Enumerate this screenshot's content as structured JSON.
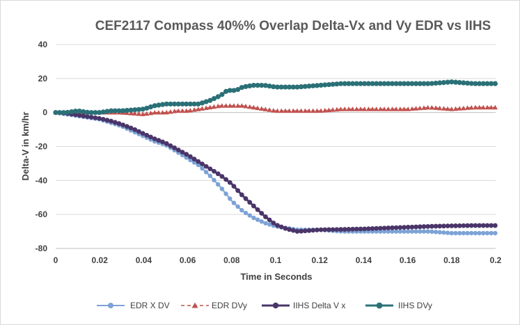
{
  "chart_data": {
    "type": "line",
    "title": "CEF2117 Compass 40%% Overlap  Delta-Vx and Vy EDR vs IIHS",
    "xlabel": "Time in Seconds",
    "ylabel": "Delta-V in km/hr",
    "xlim": [
      0,
      0.2
    ],
    "ylim": [
      -80,
      40
    ],
    "x_ticks": [
      0,
      0.02,
      0.04,
      0.06,
      0.08,
      0.1,
      0.12,
      0.14,
      0.16,
      0.18,
      0.2
    ],
    "x_tick_labels": [
      "0",
      "0.02",
      "0.04",
      "0.06",
      "0.08",
      "0.1",
      "0.12",
      "0.14",
      "0.16",
      "0.18",
      "0.2"
    ],
    "y_ticks": [
      -80,
      -60,
      -40,
      -20,
      0,
      20,
      40
    ],
    "y_tick_labels": [
      "-80",
      "-60",
      "-40",
      "-20",
      "0",
      "20",
      "40"
    ],
    "grid": "horizontal",
    "legend_position": "bottom",
    "series": [
      {
        "name": "EDR X DV",
        "color": "#7da2d6",
        "marker": "circle",
        "line": "solid",
        "x": [
          0,
          0.005,
          0.01,
          0.015,
          0.02,
          0.025,
          0.03,
          0.035,
          0.04,
          0.045,
          0.05,
          0.055,
          0.06,
          0.065,
          0.07,
          0.075,
          0.08,
          0.085,
          0.09,
          0.095,
          0.1,
          0.105,
          0.11,
          0.115,
          0.12,
          0.13,
          0.14,
          0.15,
          0.16,
          0.17,
          0.18,
          0.19,
          0.2
        ],
        "y": [
          0,
          -1,
          -2,
          -3,
          -4,
          -6,
          -8,
          -11,
          -14,
          -17,
          -19,
          -23,
          -27,
          -31,
          -37,
          -44,
          -52,
          -58,
          -62,
          -65,
          -67,
          -68,
          -69,
          -69,
          -69,
          -70,
          -70,
          -70,
          -70,
          -70,
          -71,
          -71,
          -71
        ]
      },
      {
        "name": "EDR DVy",
        "color": "#c0504d",
        "marker": "triangle",
        "line": "dashed",
        "x": [
          0,
          0.01,
          0.02,
          0.03,
          0.04,
          0.045,
          0.05,
          0.055,
          0.06,
          0.065,
          0.07,
          0.075,
          0.08,
          0.085,
          0.09,
          0.095,
          0.1,
          0.11,
          0.12,
          0.13,
          0.14,
          0.15,
          0.16,
          0.17,
          0.18,
          0.19,
          0.2
        ],
        "y": [
          0,
          0,
          0,
          0,
          -1,
          0,
          0,
          1,
          1,
          2,
          3,
          4,
          4,
          4,
          3,
          2,
          1,
          1,
          1,
          2,
          2,
          2,
          2,
          3,
          2,
          3,
          3
        ]
      },
      {
        "name": "IIHS Delta V x",
        "color": "#4a3569",
        "marker": "circle",
        "line": "solid",
        "x": [
          0,
          0.005,
          0.01,
          0.015,
          0.02,
          0.025,
          0.03,
          0.035,
          0.04,
          0.045,
          0.05,
          0.055,
          0.06,
          0.065,
          0.07,
          0.075,
          0.08,
          0.085,
          0.09,
          0.095,
          0.1,
          0.105,
          0.11,
          0.115,
          0.12,
          0.13,
          0.14,
          0.15,
          0.16,
          0.17,
          0.18,
          0.19,
          0.2
        ],
        "y": [
          0,
          -0.5,
          -1.5,
          -2.5,
          -3.5,
          -5,
          -7,
          -9.5,
          -12.5,
          -15.5,
          -18,
          -21.5,
          -25,
          -29,
          -33,
          -37,
          -42,
          -49,
          -55,
          -61,
          -66,
          -68.5,
          -70,
          -69.5,
          -69,
          -68.8,
          -68.5,
          -68,
          -67.5,
          -67,
          -66.7,
          -66.5,
          -66.5
        ]
      },
      {
        "name": "IIHS DVy",
        "color": "#2b7077",
        "marker": "circle",
        "line": "solid",
        "x": [
          0,
          0.005,
          0.01,
          0.015,
          0.02,
          0.025,
          0.03,
          0.035,
          0.04,
          0.045,
          0.05,
          0.055,
          0.06,
          0.065,
          0.07,
          0.075,
          0.078,
          0.082,
          0.085,
          0.09,
          0.095,
          0.1,
          0.105,
          0.11,
          0.12,
          0.13,
          0.14,
          0.15,
          0.16,
          0.17,
          0.18,
          0.19,
          0.2
        ],
        "y": [
          0,
          0,
          1,
          0,
          0,
          1,
          1,
          1.5,
          2,
          4,
          5,
          5,
          5,
          5,
          7,
          10,
          13,
          13,
          15,
          16,
          16,
          15,
          15,
          15,
          16,
          17,
          17,
          17,
          17,
          17,
          18,
          17,
          17
        ]
      }
    ]
  }
}
